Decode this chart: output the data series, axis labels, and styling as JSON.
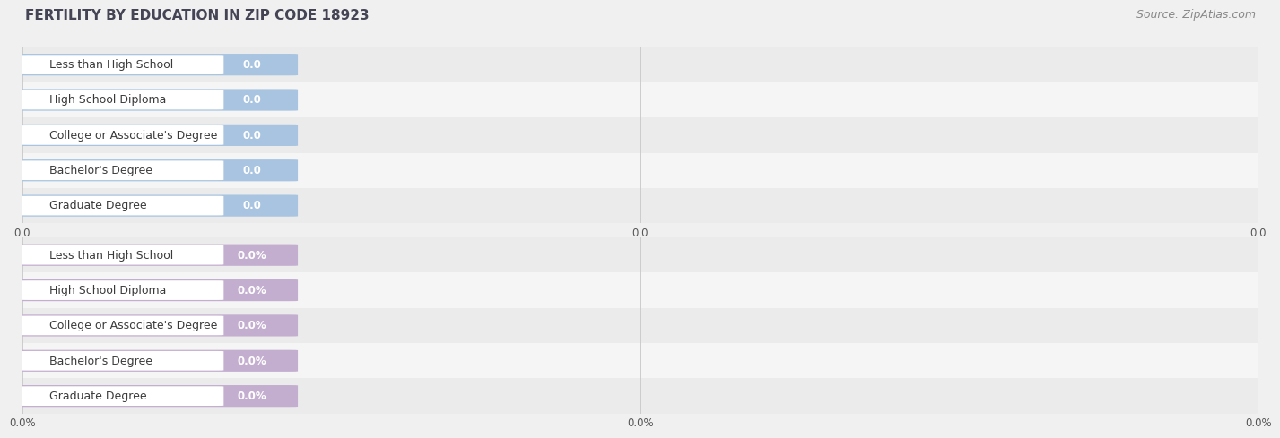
{
  "title": "FERTILITY BY EDUCATION IN ZIP CODE 18923",
  "source_text": "Source: ZipAtlas.com",
  "categories": [
    "Less than High School",
    "High School Diploma",
    "College or Associate's Degree",
    "Bachelor's Degree",
    "Graduate Degree"
  ],
  "values_top": [
    0.0,
    0.0,
    0.0,
    0.0,
    0.0
  ],
  "values_bottom": [
    0.0,
    0.0,
    0.0,
    0.0,
    0.0
  ],
  "bar_color_top": "#a8c4e0",
  "bar_color_bottom": "#c4aed0",
  "row_bg_even": "#ebebeb",
  "row_bg_odd": "#f5f5f5",
  "grid_color": "#cccccc",
  "xtick_labels_top": [
    "0.0",
    "0.0",
    "0.0"
  ],
  "xtick_labels_bottom": [
    "0.0%",
    "0.0%",
    "0.0%"
  ],
  "title_fontsize": 11,
  "source_fontsize": 9,
  "bar_label_fontsize": 9,
  "value_fontsize": 8.5,
  "axis_fontsize": 8.5,
  "background_color": "#f0f0f0"
}
